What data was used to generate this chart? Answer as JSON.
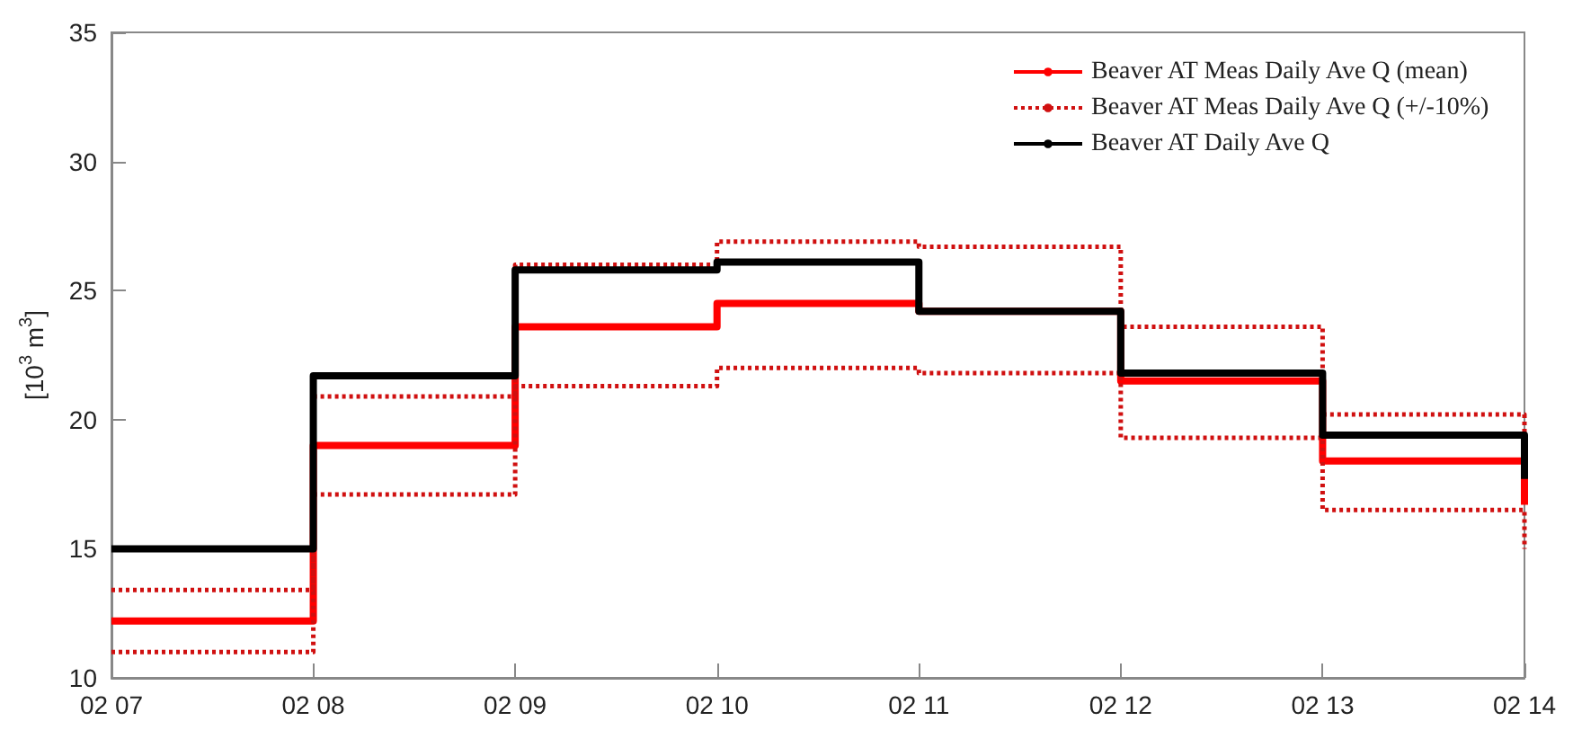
{
  "chart_data": {
    "type": "step",
    "ylabel": "[10$^{3}$ m$^{3}$]",
    "x": [
      "--02-07",
      "--02-08",
      "--02-09",
      "--02-10",
      "--02-11",
      "--02-12",
      "--02-13",
      "--02-14"
    ],
    "series": [
      {
        "name": "Beaver AT Meas Daily Ave Q (mean)",
        "color": "#ff0000",
        "line_style": "solid",
        "values": [
          12.2,
          19.0,
          23.6,
          24.5,
          24.2,
          21.5,
          18.4,
          16.7
        ]
      },
      {
        "name": "Beaver AT Meas Daily Ave Q (+/-10%)",
        "color": "#d01010",
        "line_style": "dotted",
        "values": [
          13.4,
          20.9,
          26.0,
          26.9,
          26.7,
          23.6,
          20.2,
          18.3
        ]
      },
      {
        "color": "#d01010",
        "line_style": "dotted",
        "values": [
          11.0,
          17.1,
          21.3,
          22.0,
          21.8,
          19.3,
          16.5,
          15.0
        ]
      },
      {
        "name": "Beaver AT Daily Ave Q",
        "color": "#000000",
        "line_style": "solid",
        "values": [
          15.0,
          21.7,
          25.8,
          26.1,
          24.2,
          21.8,
          19.4,
          17.7
        ]
      }
    ],
    "xlim": [
      "--02-07",
      "--02-14"
    ],
    "xticks": [
      {
        "value": "--02-07",
        "label": "02 07"
      },
      {
        "value": "--02-08",
        "label": "02 08"
      },
      {
        "value": "--02-09",
        "label": "02 09"
      },
      {
        "value": "--02-10",
        "label": "02 10"
      },
      {
        "value": "--02-11",
        "label": "02 11"
      },
      {
        "value": "--02-12",
        "label": "02 12"
      },
      {
        "value": "--02-13",
        "label": "02 13"
      },
      {
        "value": "--02-14",
        "label": "02 14"
      }
    ],
    "ylim": [
      10,
      35
    ],
    "yticks": [
      10,
      15,
      20,
      25,
      30,
      35
    ],
    "grid": false,
    "legend": "top right",
    "marker": "none"
  }
}
